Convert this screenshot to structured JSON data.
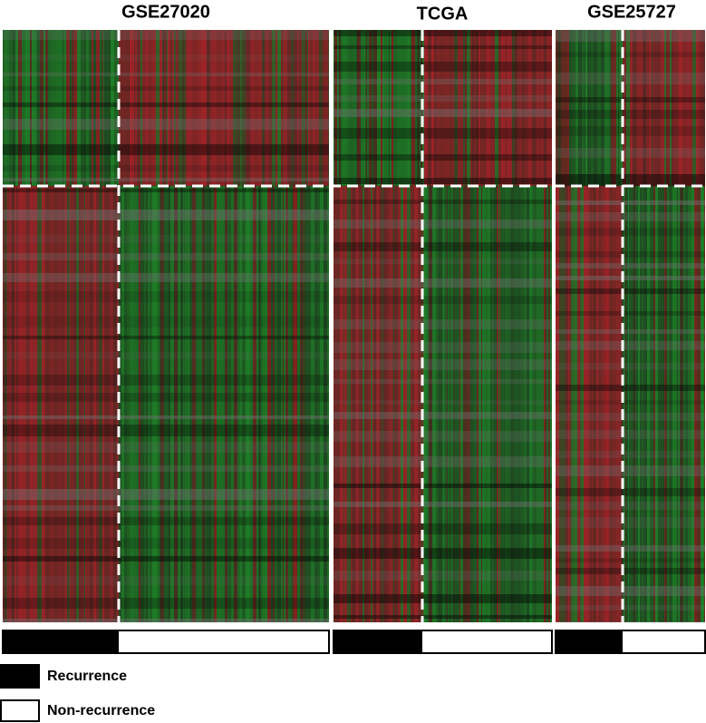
{
  "panels": [
    {
      "title": "GSE27020"
    },
    {
      "title": "TCGA"
    },
    {
      "title": "GSE25727"
    }
  ],
  "legend": [
    {
      "label": "Recurrence"
    },
    {
      "label": "Non-recurrence"
    }
  ]
}
